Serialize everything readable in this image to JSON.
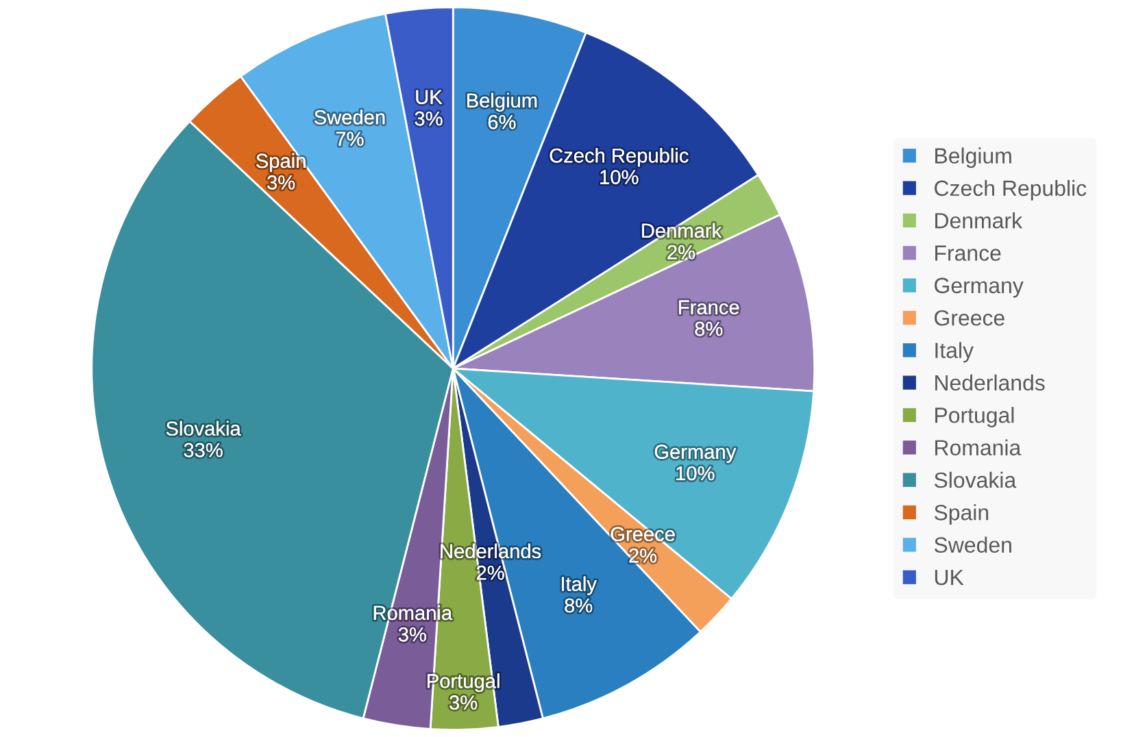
{
  "chart_data": {
    "type": "pie",
    "categories": [
      "Belgium",
      "Czech Republic",
      "Denmark",
      "France",
      "Germany",
      "Greece",
      "Italy",
      "Nederlands",
      "Portugal",
      "Romania",
      "Slovakia",
      "Spain",
      "Sweden",
      "UK"
    ],
    "values": [
      6,
      10,
      2,
      8,
      10,
      2,
      8,
      2,
      3,
      3,
      33,
      3,
      7,
      3
    ],
    "value_labels": [
      "6%",
      "10%",
      "2%",
      "8%",
      "10%",
      "2%",
      "8%",
      "2%",
      "3%",
      "3%",
      "33%",
      "3%",
      "7%",
      "3%"
    ],
    "colors": [
      "#3a8fd4",
      "#1f3f9f",
      "#9cc66a",
      "#9a83bd",
      "#4fb3cc",
      "#f5a05a",
      "#2a7fc0",
      "#1b3a8c",
      "#8aaa45",
      "#7a5c99",
      "#3a8f9f",
      "#d8691f",
      "#5ab0e8",
      "#3a5cc8"
    ],
    "legend": "right"
  }
}
